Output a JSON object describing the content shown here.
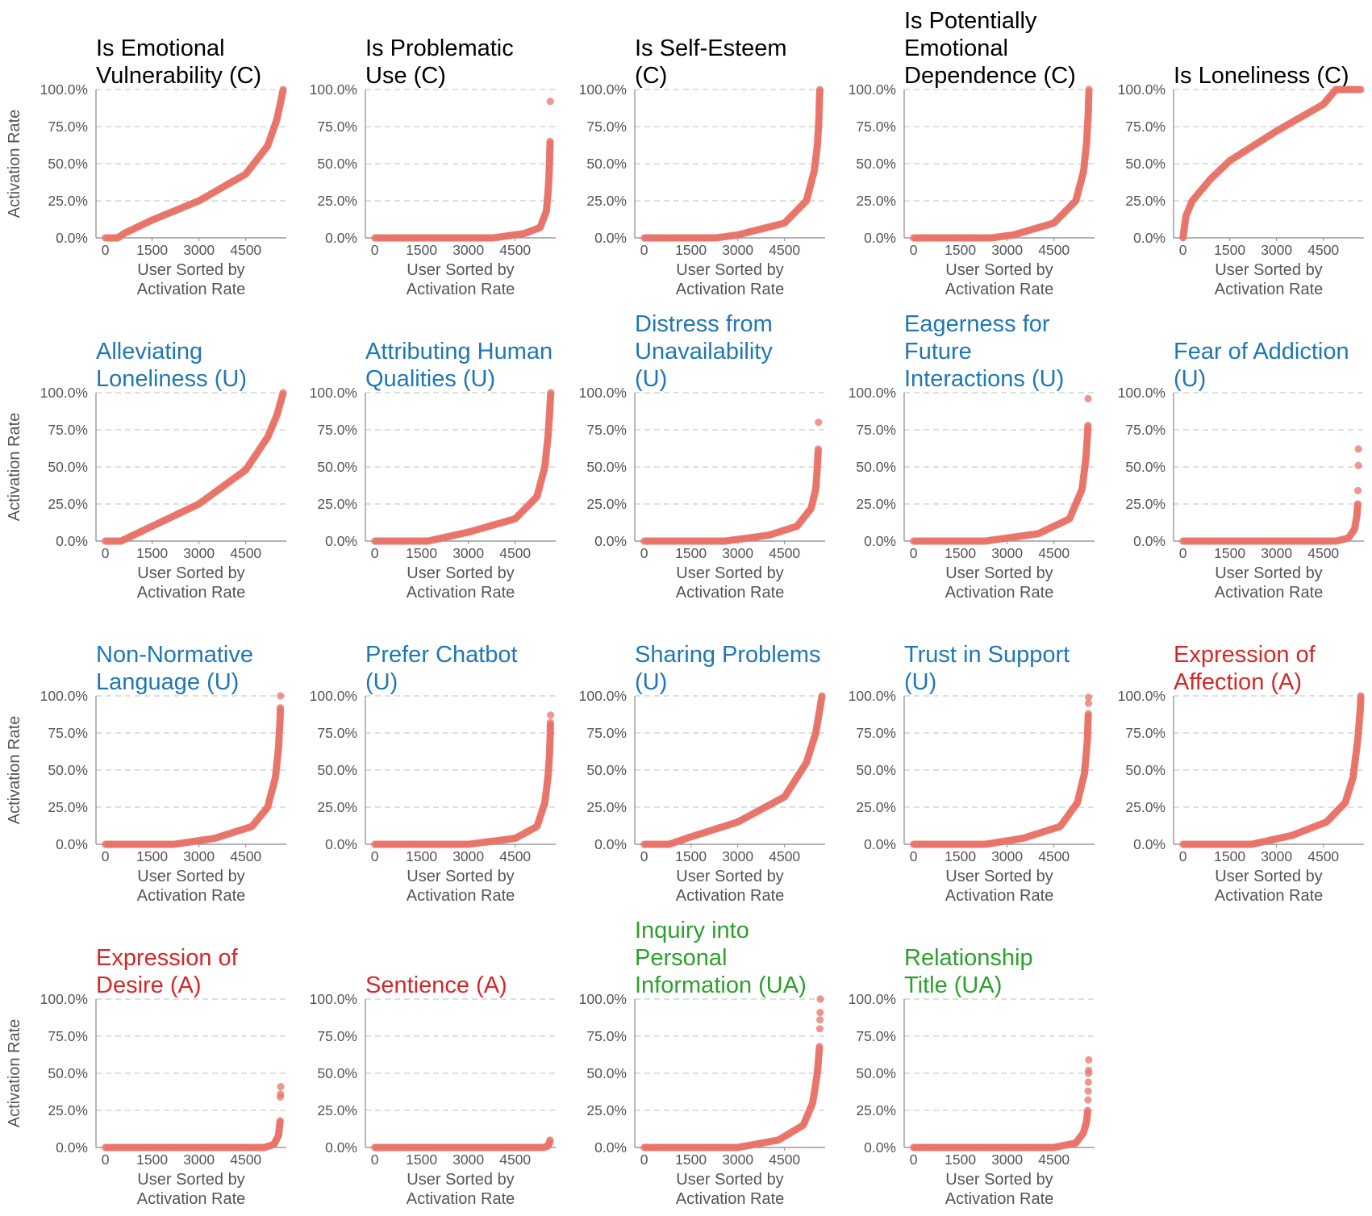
{
  "figure": {
    "y_axis_label": "Activation Rate",
    "x_axis_label_lines": [
      "User Sorted by",
      "Activation Rate"
    ]
  },
  "colors": {
    "C": "#000000",
    "U": "#1f77b4",
    "A": "#d62728",
    "UA": "#2ca02c",
    "points": "#e8746a"
  },
  "chart_data": [
    {
      "type": "scatter",
      "category": "C",
      "title_lines": [
        "Is Emotional",
        "Vulnerability (C)"
      ],
      "xlabel": "User Sorted by Activation Rate",
      "ylabel": "Activation Rate",
      "xticks": [
        0,
        1500,
        3000,
        4500
      ],
      "yticks": [
        "0.0%",
        "25.0%",
        "50.0%",
        "75.0%",
        "100.0%"
      ],
      "xlim": [
        -300,
        5800
      ],
      "ylim": [
        0,
        100
      ],
      "curve": [
        [
          0,
          0
        ],
        [
          400,
          0
        ],
        [
          600,
          3
        ],
        [
          1500,
          12
        ],
        [
          3000,
          25
        ],
        [
          4500,
          43
        ],
        [
          5200,
          62
        ],
        [
          5500,
          80
        ],
        [
          5700,
          100
        ]
      ]
    },
    {
      "type": "scatter",
      "category": "C",
      "title_lines": [
        "Is Problematic",
        "Use (C)"
      ],
      "xlabel": "User Sorted by Activation Rate",
      "ylabel": "Activation Rate",
      "xticks": [
        0,
        1500,
        3000,
        4500
      ],
      "yticks": [
        "0.0%",
        "25.0%",
        "50.0%",
        "75.0%",
        "100.0%"
      ],
      "xlim": [
        -300,
        5800
      ],
      "ylim": [
        0,
        100
      ],
      "curve": [
        [
          0,
          0
        ],
        [
          3800,
          0
        ],
        [
          4800,
          3
        ],
        [
          5300,
          7
        ],
        [
          5500,
          18
        ],
        [
          5550,
          30
        ],
        [
          5580,
          40
        ],
        [
          5600,
          50
        ],
        [
          5610,
          58
        ],
        [
          5620,
          65
        ]
      ],
      "outliers": [
        [
          5625,
          92
        ]
      ]
    },
    {
      "type": "scatter",
      "category": "C",
      "title_lines": [
        "Is Self-Esteem",
        "(C)"
      ],
      "xlabel": "User Sorted by Activation Rate",
      "ylabel": "Activation Rate",
      "xticks": [
        0,
        1500,
        3000,
        4500
      ],
      "yticks": [
        "0.0%",
        "25.0%",
        "50.0%",
        "75.0%",
        "100.0%"
      ],
      "xlim": [
        -300,
        5800
      ],
      "ylim": [
        0,
        100
      ],
      "curve": [
        [
          0,
          0
        ],
        [
          2300,
          0
        ],
        [
          3000,
          2
        ],
        [
          4500,
          10
        ],
        [
          5200,
          25
        ],
        [
          5450,
          45
        ],
        [
          5550,
          62
        ],
        [
          5600,
          80
        ],
        [
          5620,
          95
        ],
        [
          5630,
          100
        ]
      ]
    },
    {
      "type": "scatter",
      "category": "C",
      "title_lines": [
        "Is Potentially",
        "Emotional",
        "Dependence (C)"
      ],
      "xlabel": "User Sorted by Activation Rate",
      "ylabel": "Activation Rate",
      "xticks": [
        0,
        1500,
        3000,
        4500
      ],
      "yticks": [
        "0.0%",
        "25.0%",
        "50.0%",
        "75.0%",
        "100.0%"
      ],
      "xlim": [
        -300,
        5800
      ],
      "ylim": [
        0,
        100
      ],
      "curve": [
        [
          0,
          0
        ],
        [
          2500,
          0
        ],
        [
          3200,
          2
        ],
        [
          4500,
          10
        ],
        [
          5200,
          25
        ],
        [
          5450,
          45
        ],
        [
          5550,
          65
        ],
        [
          5600,
          85
        ],
        [
          5620,
          100
        ]
      ]
    },
    {
      "type": "scatter",
      "category": "C",
      "title_lines": [
        "Is Loneliness (C)"
      ],
      "xlabel": "User Sorted by Activation Rate",
      "ylabel": "Activation Rate",
      "xticks": [
        0,
        1500,
        3000,
        4500
      ],
      "yticks": [
        "0.0%",
        "25.0%",
        "50.0%",
        "75.0%",
        "100.0%"
      ],
      "xlim": [
        -300,
        5800
      ],
      "ylim": [
        0,
        100
      ],
      "curve": [
        [
          0,
          0
        ],
        [
          100,
          15
        ],
        [
          300,
          25
        ],
        [
          900,
          40
        ],
        [
          1500,
          52
        ],
        [
          3000,
          72
        ],
        [
          4500,
          90
        ],
        [
          4900,
          100
        ],
        [
          5700,
          100
        ]
      ]
    },
    {
      "type": "scatter",
      "category": "U",
      "title_lines": [
        "Alleviating",
        "Loneliness (U)"
      ],
      "xlabel": "User Sorted by Activation Rate",
      "ylabel": "Activation Rate",
      "xticks": [
        0,
        1500,
        3000,
        4500
      ],
      "yticks": [
        "0.0%",
        "25.0%",
        "50.0%",
        "75.0%",
        "100.0%"
      ],
      "xlim": [
        -300,
        5800
      ],
      "ylim": [
        0,
        100
      ],
      "curve": [
        [
          0,
          0
        ],
        [
          500,
          0
        ],
        [
          1500,
          10
        ],
        [
          3000,
          25
        ],
        [
          4500,
          48
        ],
        [
          5200,
          70
        ],
        [
          5500,
          85
        ],
        [
          5700,
          100
        ]
      ]
    },
    {
      "type": "scatter",
      "category": "U",
      "title_lines": [
        "Attributing Human",
        "Qualities (U)"
      ],
      "xlabel": "User Sorted by Activation Rate",
      "ylabel": "Activation Rate",
      "xticks": [
        0,
        1500,
        3000,
        4500
      ],
      "yticks": [
        "0.0%",
        "25.0%",
        "50.0%",
        "75.0%",
        "100.0%"
      ],
      "xlim": [
        -300,
        5800
      ],
      "ylim": [
        0,
        100
      ],
      "curve": [
        [
          0,
          0
        ],
        [
          1700,
          0
        ],
        [
          3000,
          6
        ],
        [
          4500,
          15
        ],
        [
          5200,
          30
        ],
        [
          5450,
          50
        ],
        [
          5550,
          70
        ],
        [
          5600,
          85
        ],
        [
          5640,
          100
        ]
      ]
    },
    {
      "type": "scatter",
      "category": "U",
      "title_lines": [
        "Distress from",
        "Unavailability",
        "(U)"
      ],
      "xlabel": "User Sorted by Activation Rate",
      "ylabel": "Activation Rate",
      "xticks": [
        0,
        1500,
        3000,
        4500
      ],
      "yticks": [
        "0.0%",
        "25.0%",
        "50.0%",
        "75.0%",
        "100.0%"
      ],
      "xlim": [
        -300,
        5800
      ],
      "ylim": [
        0,
        100
      ],
      "curve": [
        [
          0,
          0
        ],
        [
          2600,
          0
        ],
        [
          4000,
          4
        ],
        [
          4900,
          10
        ],
        [
          5350,
          22
        ],
        [
          5500,
          35
        ],
        [
          5550,
          50
        ],
        [
          5580,
          62
        ]
      ],
      "outliers": [
        [
          5585,
          80
        ]
      ]
    },
    {
      "type": "scatter",
      "category": "U",
      "title_lines": [
        "Eagerness for",
        "Future",
        "Interactions (U)"
      ],
      "xlabel": "User Sorted by Activation Rate",
      "ylabel": "Activation Rate",
      "xticks": [
        0,
        1500,
        3000,
        4500
      ],
      "yticks": [
        "0.0%",
        "25.0%",
        "50.0%",
        "75.0%",
        "100.0%"
      ],
      "xlim": [
        -300,
        5800
      ],
      "ylim": [
        0,
        100
      ],
      "curve": [
        [
          0,
          0
        ],
        [
          2300,
          0
        ],
        [
          4000,
          5
        ],
        [
          5000,
          15
        ],
        [
          5400,
          35
        ],
        [
          5520,
          55
        ],
        [
          5570,
          70
        ],
        [
          5590,
          78
        ]
      ],
      "outliers": [
        [
          5595,
          96
        ]
      ]
    },
    {
      "type": "scatter",
      "category": "U",
      "title_lines": [
        "Fear of Addiction",
        "(U)"
      ],
      "xlabel": "User Sorted by Activation Rate",
      "ylabel": "Activation Rate",
      "xticks": [
        0,
        1500,
        3000,
        4500
      ],
      "yticks": [
        "0.0%",
        "25.0%",
        "50.0%",
        "75.0%",
        "100.0%"
      ],
      "xlim": [
        -300,
        5800
      ],
      "ylim": [
        0,
        100
      ],
      "curve": [
        [
          0,
          0
        ],
        [
          4900,
          0
        ],
        [
          5300,
          2
        ],
        [
          5500,
          8
        ],
        [
          5580,
          18
        ],
        [
          5600,
          25
        ]
      ],
      "outliers": [
        [
          5610,
          34
        ],
        [
          5620,
          51
        ],
        [
          5625,
          62
        ]
      ]
    },
    {
      "type": "scatter",
      "category": "U",
      "title_lines": [
        "Non-Normative",
        "Language (U)"
      ],
      "xlabel": "User Sorted by Activation Rate",
      "ylabel": "Activation Rate",
      "xticks": [
        0,
        1500,
        3000,
        4500
      ],
      "yticks": [
        "0.0%",
        "25.0%",
        "50.0%",
        "75.0%",
        "100.0%"
      ],
      "xlim": [
        -300,
        5800
      ],
      "ylim": [
        0,
        100
      ],
      "curve": [
        [
          0,
          0
        ],
        [
          2200,
          0
        ],
        [
          3500,
          4
        ],
        [
          4700,
          12
        ],
        [
          5200,
          25
        ],
        [
          5450,
          45
        ],
        [
          5550,
          65
        ],
        [
          5600,
          85
        ],
        [
          5610,
          92
        ]
      ],
      "outliers": [
        [
          5615,
          100
        ]
      ]
    },
    {
      "type": "scatter",
      "category": "U",
      "title_lines": [
        "Prefer Chatbot",
        "(U)"
      ],
      "xlabel": "User Sorted by Activation Rate",
      "ylabel": "Activation Rate",
      "xticks": [
        0,
        1500,
        3000,
        4500
      ],
      "yticks": [
        "0.0%",
        "25.0%",
        "50.0%",
        "75.0%",
        "100.0%"
      ],
      "xlim": [
        -300,
        5800
      ],
      "ylim": [
        0,
        100
      ],
      "curve": [
        [
          0,
          0
        ],
        [
          3000,
          0
        ],
        [
          4500,
          4
        ],
        [
          5200,
          12
        ],
        [
          5450,
          28
        ],
        [
          5550,
          45
        ],
        [
          5600,
          60
        ],
        [
          5620,
          72
        ],
        [
          5630,
          82
        ]
      ],
      "outliers": [
        [
          5635,
          87
        ]
      ]
    },
    {
      "type": "scatter",
      "category": "U",
      "title_lines": [
        "Sharing Problems",
        "(U)"
      ],
      "xlabel": "User Sorted by Activation Rate",
      "ylabel": "Activation Rate",
      "xticks": [
        0,
        1500,
        3000,
        4500
      ],
      "yticks": [
        "0.0%",
        "25.0%",
        "50.0%",
        "75.0%",
        "100.0%"
      ],
      "xlim": [
        -300,
        5800
      ],
      "ylim": [
        0,
        100
      ],
      "curve": [
        [
          0,
          0
        ],
        [
          800,
          0
        ],
        [
          1500,
          5
        ],
        [
          3000,
          15
        ],
        [
          4500,
          32
        ],
        [
          5200,
          55
        ],
        [
          5500,
          75
        ],
        [
          5700,
          100
        ]
      ]
    },
    {
      "type": "scatter",
      "category": "U",
      "title_lines": [
        "Trust in Support",
        "(U)"
      ],
      "xlabel": "User Sorted by Activation Rate",
      "ylabel": "Activation Rate",
      "xticks": [
        0,
        1500,
        3000,
        4500
      ],
      "yticks": [
        "0.0%",
        "25.0%",
        "50.0%",
        "75.0%",
        "100.0%"
      ],
      "xlim": [
        -300,
        5800
      ],
      "ylim": [
        0,
        100
      ],
      "curve": [
        [
          0,
          0
        ],
        [
          2300,
          0
        ],
        [
          3500,
          4
        ],
        [
          4700,
          12
        ],
        [
          5250,
          28
        ],
        [
          5480,
          48
        ],
        [
          5570,
          70
        ],
        [
          5600,
          88
        ]
      ],
      "outliers": [
        [
          5605,
          95
        ],
        [
          5610,
          99
        ]
      ]
    },
    {
      "type": "scatter",
      "category": "A",
      "title_lines": [
        "Expression of",
        "Affection (A)"
      ],
      "xlabel": "User Sorted by Activation Rate",
      "ylabel": "Activation Rate",
      "xticks": [
        0,
        1500,
        3000,
        4500
      ],
      "yticks": [
        "0.0%",
        "25.0%",
        "50.0%",
        "75.0%",
        "100.0%"
      ],
      "xlim": [
        -300,
        5800
      ],
      "ylim": [
        0,
        100
      ],
      "curve": [
        [
          0,
          0
        ],
        [
          2200,
          0
        ],
        [
          3500,
          6
        ],
        [
          4600,
          15
        ],
        [
          5200,
          28
        ],
        [
          5450,
          45
        ],
        [
          5600,
          70
        ],
        [
          5680,
          90
        ],
        [
          5700,
          100
        ]
      ]
    },
    {
      "type": "scatter",
      "category": "A",
      "title_lines": [
        "Expression of",
        "Desire (A)"
      ],
      "xlabel": "User Sorted by Activation Rate",
      "ylabel": "Activation Rate",
      "xticks": [
        0,
        1500,
        3000,
        4500
      ],
      "yticks": [
        "0.0%",
        "25.0%",
        "50.0%",
        "75.0%",
        "100.0%"
      ],
      "xlim": [
        -300,
        5800
      ],
      "ylim": [
        0,
        100
      ],
      "curve": [
        [
          0,
          0
        ],
        [
          5100,
          0
        ],
        [
          5400,
          2
        ],
        [
          5550,
          8
        ],
        [
          5600,
          18
        ]
      ],
      "outliers": [
        [
          5610,
          34
        ],
        [
          5615,
          36
        ],
        [
          5620,
          41
        ]
      ]
    },
    {
      "type": "scatter",
      "category": "A",
      "title_lines": [
        "Sentience (A)"
      ],
      "xlabel": "User Sorted by Activation Rate",
      "ylabel": "Activation Rate",
      "xticks": [
        0,
        1500,
        3000,
        4500
      ],
      "yticks": [
        "0.0%",
        "25.0%",
        "50.0%",
        "75.0%",
        "100.0%"
      ],
      "xlim": [
        -300,
        5800
      ],
      "ylim": [
        0,
        100
      ],
      "curve": [
        [
          0,
          0
        ],
        [
          5400,
          0
        ],
        [
          5550,
          1
        ],
        [
          5600,
          3
        ],
        [
          5620,
          5
        ]
      ]
    },
    {
      "type": "scatter",
      "category": "UA",
      "title_lines": [
        "Inquiry into",
        "Personal",
        "Information (UA)"
      ],
      "xlabel": "User Sorted by Activation Rate",
      "ylabel": "Activation Rate",
      "xticks": [
        0,
        1500,
        3000,
        4500
      ],
      "yticks": [
        "0.0%",
        "25.0%",
        "50.0%",
        "75.0%",
        "100.0%"
      ],
      "xlim": [
        -300,
        5800
      ],
      "ylim": [
        0,
        100
      ],
      "curve": [
        [
          0,
          0
        ],
        [
          3000,
          0
        ],
        [
          4300,
          5
        ],
        [
          5100,
          15
        ],
        [
          5400,
          30
        ],
        [
          5550,
          50
        ],
        [
          5620,
          68
        ]
      ],
      "outliers": [
        [
          5630,
          80
        ],
        [
          5635,
          86
        ],
        [
          5640,
          91
        ],
        [
          5645,
          100
        ]
      ]
    },
    {
      "type": "scatter",
      "category": "UA",
      "title_lines": [
        "Relationship",
        "Title (UA)"
      ],
      "xlabel": "User Sorted by Activation Rate",
      "ylabel": "Activation Rate",
      "xticks": [
        0,
        1500,
        3000,
        4500
      ],
      "yticks": [
        "0.0%",
        "25.0%",
        "50.0%",
        "75.0%",
        "100.0%"
      ],
      "xlim": [
        -300,
        5800
      ],
      "ylim": [
        0,
        100
      ],
      "curve": [
        [
          0,
          0
        ],
        [
          4500,
          0
        ],
        [
          5200,
          3
        ],
        [
          5450,
          10
        ],
        [
          5550,
          18
        ],
        [
          5580,
          25
        ]
      ],
      "outliers": [
        [
          5590,
          32
        ],
        [
          5595,
          38
        ],
        [
          5600,
          44
        ],
        [
          5605,
          50
        ],
        [
          5610,
          52
        ],
        [
          5615,
          59
        ]
      ]
    }
  ]
}
